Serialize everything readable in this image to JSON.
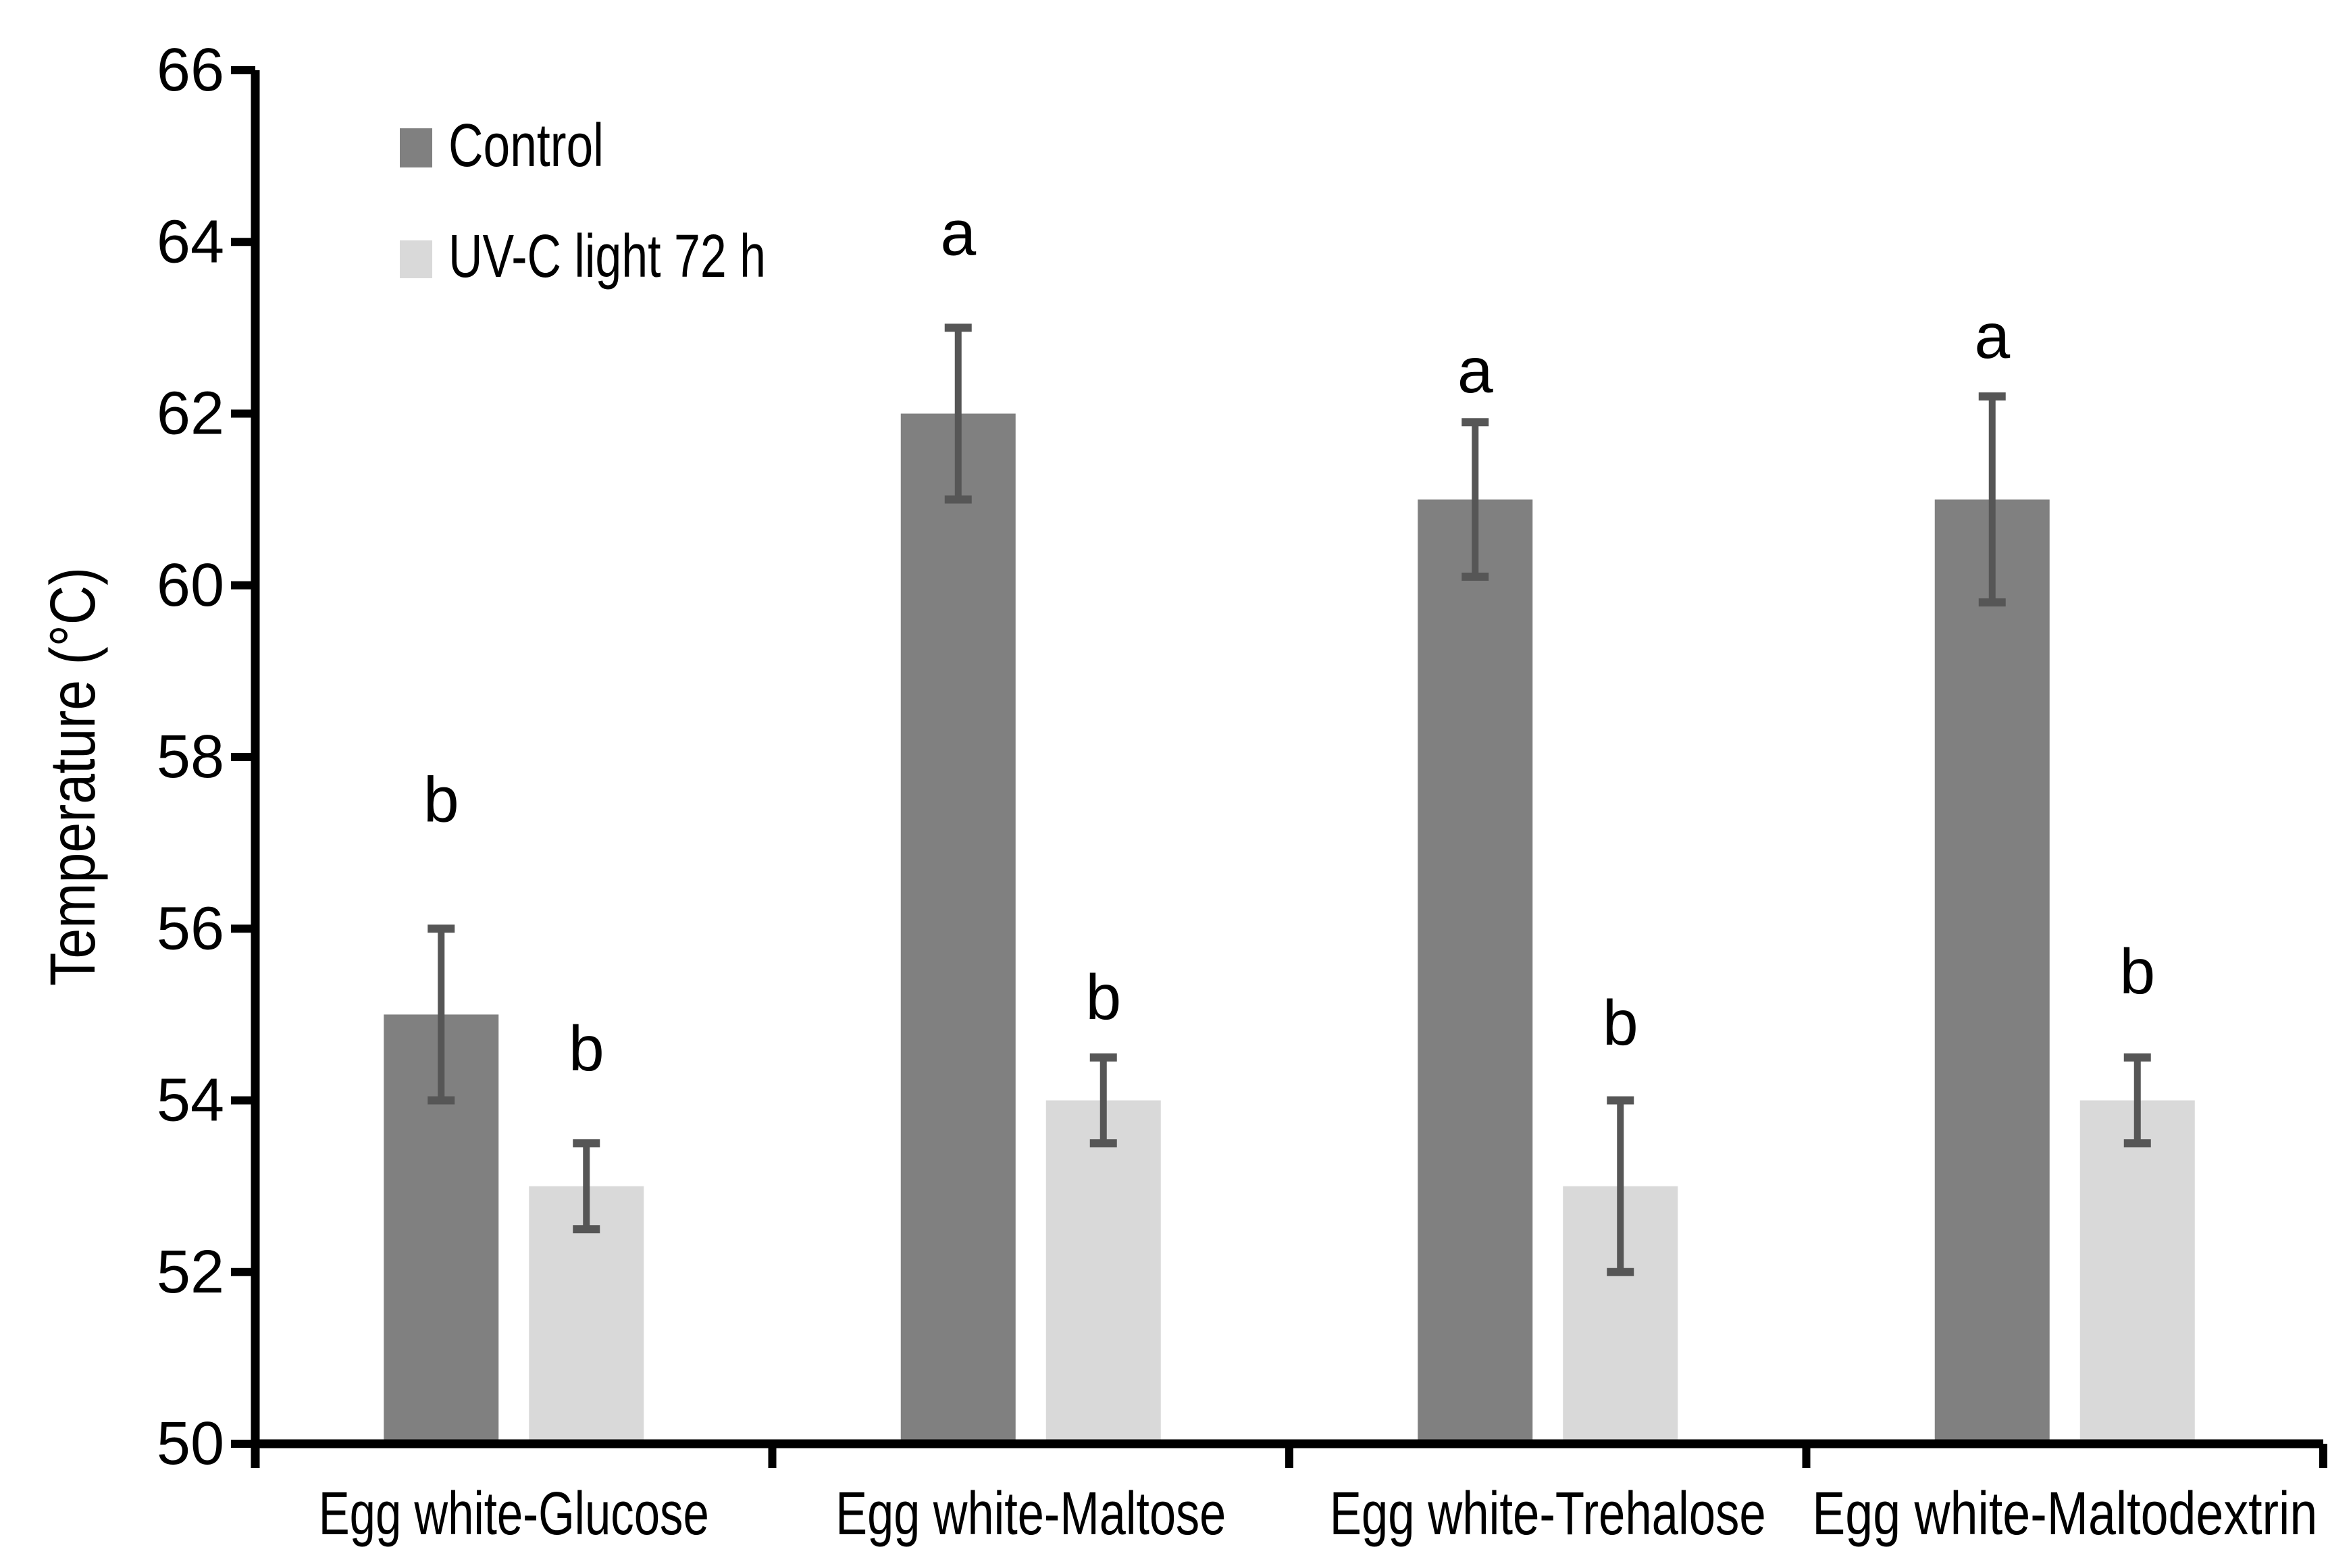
{
  "chart_data": {
    "type": "bar",
    "title": "",
    "xlabel": "",
    "ylabel": "Temperature (°C)",
    "ylim": [
      50,
      66
    ],
    "ytick_step": 2,
    "yticks": [
      50,
      52,
      54,
      56,
      58,
      60,
      62,
      64,
      66
    ],
    "grid": false,
    "legend_position": "upper-left-inside",
    "categories": [
      "Egg white-Glucose",
      "Egg white-Maltose",
      "Egg white-Trehalose",
      "Egg white-Maltodextrin"
    ],
    "series": [
      {
        "name": "Control",
        "color": "#808080",
        "values": [
          55.0,
          62.0,
          61.0,
          61.0
        ],
        "err_minus": [
          1.0,
          1.0,
          0.9,
          1.2
        ],
        "err_plus": [
          1.0,
          1.0,
          0.9,
          1.2
        ],
        "sig_letters": [
          "b",
          "a",
          "a",
          "a"
        ],
        "sig_letter_y": [
          57.5,
          64.1,
          62.5,
          62.9
        ]
      },
      {
        "name": "UV-C light 72 h",
        "color": "#D9D9D9",
        "values": [
          53.0,
          54.0,
          53.0,
          54.0
        ],
        "err_minus": [
          0.5,
          0.5,
          1.0,
          0.5
        ],
        "err_plus": [
          0.5,
          0.5,
          1.0,
          0.5
        ],
        "sig_letters": [
          "b",
          "b",
          "b",
          "b"
        ],
        "sig_letter_y": [
          54.6,
          55.2,
          54.9,
          55.5
        ]
      }
    ],
    "error_bar_color": "#565656",
    "axis_color": "#000000"
  }
}
